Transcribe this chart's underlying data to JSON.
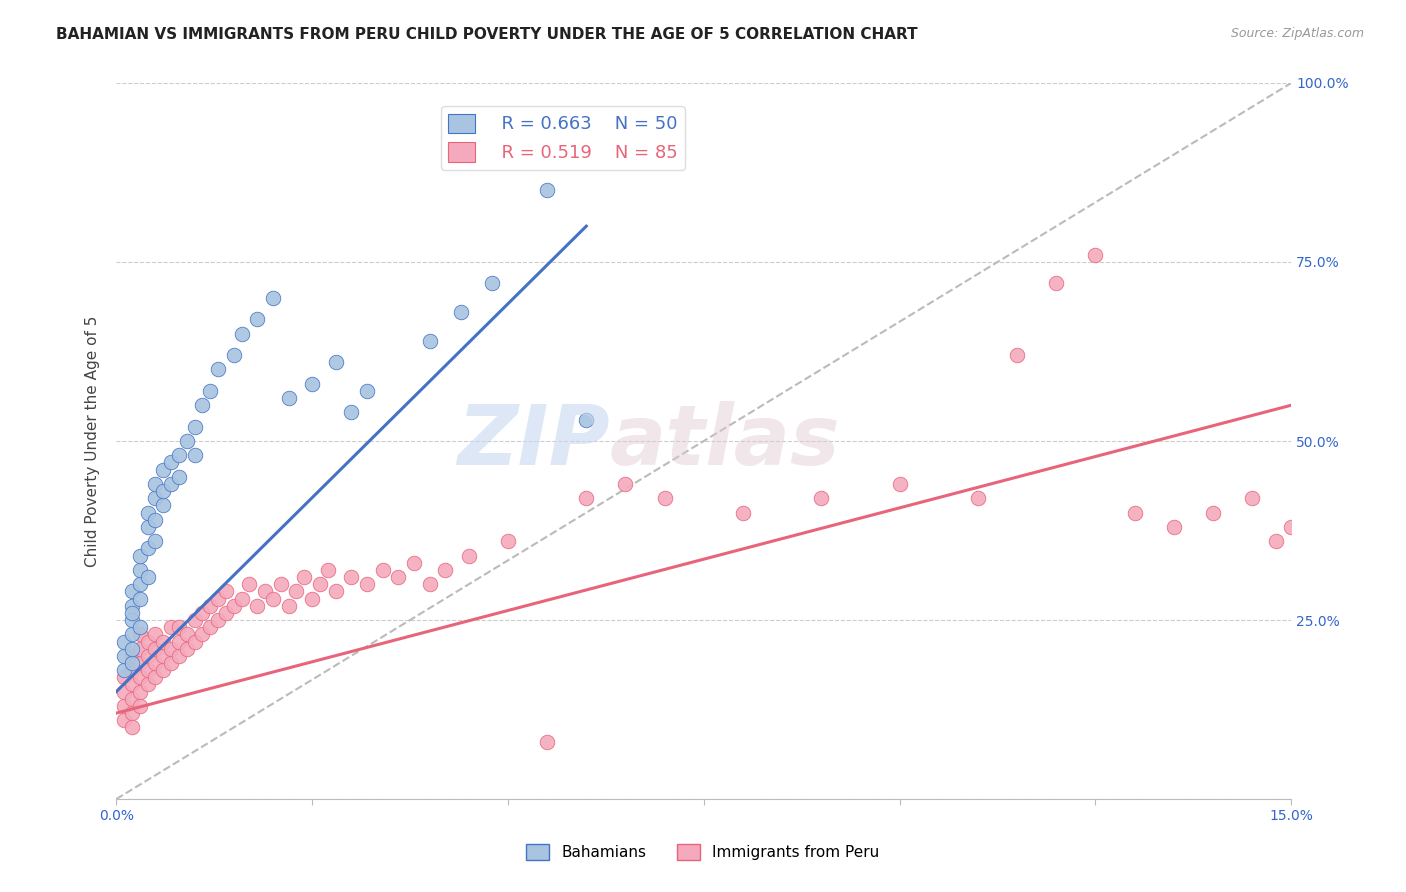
{
  "title": "BAHAMIAN VS IMMIGRANTS FROM PERU CHILD POVERTY UNDER THE AGE OF 5 CORRELATION CHART",
  "source": "Source: ZipAtlas.com",
  "ylabel": "Child Poverty Under the Age of 5",
  "xlim": [
    0.0,
    0.15
  ],
  "ylim": [
    0.0,
    1.0
  ],
  "xticks": [
    0.0,
    0.025,
    0.05,
    0.075,
    0.1,
    0.125,
    0.15
  ],
  "xticklabels": [
    "0.0%",
    "",
    "",
    "",
    "",
    "",
    "15.0%"
  ],
  "ytick_positions": [
    0.0,
    0.25,
    0.5,
    0.75,
    1.0
  ],
  "yticklabels": [
    "",
    "25.0%",
    "50.0%",
    "75.0%",
    "100.0%"
  ],
  "blue_color": "#A8C4E0",
  "pink_color": "#F4AABC",
  "blue_line_color": "#4472C4",
  "pink_line_color": "#E8647A",
  "dashed_line_color": "#BBBBBB",
  "legend_R_blue": "R = 0.663",
  "legend_N_blue": "N = 50",
  "legend_R_pink": "R = 0.519",
  "legend_N_pink": "N = 85",
  "legend_label_blue": "Bahamians",
  "legend_label_pink": "Immigrants from Peru",
  "watermark_zip": "ZIP",
  "watermark_atlas": "atlas",
  "blue_scatter_x": [
    0.001,
    0.001,
    0.001,
    0.002,
    0.002,
    0.002,
    0.002,
    0.002,
    0.002,
    0.002,
    0.003,
    0.003,
    0.003,
    0.003,
    0.003,
    0.004,
    0.004,
    0.004,
    0.004,
    0.005,
    0.005,
    0.005,
    0.005,
    0.006,
    0.006,
    0.006,
    0.007,
    0.007,
    0.008,
    0.008,
    0.009,
    0.01,
    0.01,
    0.011,
    0.012,
    0.013,
    0.015,
    0.016,
    0.018,
    0.02,
    0.022,
    0.025,
    0.028,
    0.03,
    0.032,
    0.04,
    0.044,
    0.048,
    0.055,
    0.06
  ],
  "blue_scatter_y": [
    0.18,
    0.2,
    0.22,
    0.19,
    0.21,
    0.23,
    0.25,
    0.27,
    0.29,
    0.26,
    0.24,
    0.28,
    0.3,
    0.32,
    0.34,
    0.31,
    0.35,
    0.38,
    0.4,
    0.36,
    0.39,
    0.42,
    0.44,
    0.41,
    0.43,
    0.46,
    0.44,
    0.47,
    0.45,
    0.48,
    0.5,
    0.48,
    0.52,
    0.55,
    0.57,
    0.6,
    0.62,
    0.65,
    0.67,
    0.7,
    0.56,
    0.58,
    0.61,
    0.54,
    0.57,
    0.64,
    0.68,
    0.72,
    0.85,
    0.53
  ],
  "pink_scatter_x": [
    0.001,
    0.001,
    0.001,
    0.001,
    0.002,
    0.002,
    0.002,
    0.002,
    0.002,
    0.002,
    0.003,
    0.003,
    0.003,
    0.003,
    0.003,
    0.003,
    0.004,
    0.004,
    0.004,
    0.004,
    0.005,
    0.005,
    0.005,
    0.005,
    0.006,
    0.006,
    0.006,
    0.007,
    0.007,
    0.007,
    0.008,
    0.008,
    0.008,
    0.009,
    0.009,
    0.01,
    0.01,
    0.011,
    0.011,
    0.012,
    0.012,
    0.013,
    0.013,
    0.014,
    0.014,
    0.015,
    0.016,
    0.017,
    0.018,
    0.019,
    0.02,
    0.021,
    0.022,
    0.023,
    0.024,
    0.025,
    0.026,
    0.027,
    0.028,
    0.03,
    0.032,
    0.034,
    0.036,
    0.038,
    0.04,
    0.042,
    0.045,
    0.05,
    0.055,
    0.06,
    0.065,
    0.07,
    0.08,
    0.09,
    0.1,
    0.11,
    0.115,
    0.12,
    0.125,
    0.13,
    0.135,
    0.14,
    0.145,
    0.148,
    0.15
  ],
  "pink_scatter_y": [
    0.13,
    0.15,
    0.11,
    0.17,
    0.14,
    0.16,
    0.12,
    0.18,
    0.1,
    0.2,
    0.15,
    0.17,
    0.13,
    0.19,
    0.21,
    0.23,
    0.16,
    0.18,
    0.2,
    0.22,
    0.17,
    0.19,
    0.21,
    0.23,
    0.18,
    0.2,
    0.22,
    0.19,
    0.21,
    0.24,
    0.2,
    0.22,
    0.24,
    0.21,
    0.23,
    0.22,
    0.25,
    0.23,
    0.26,
    0.24,
    0.27,
    0.25,
    0.28,
    0.26,
    0.29,
    0.27,
    0.28,
    0.3,
    0.27,
    0.29,
    0.28,
    0.3,
    0.27,
    0.29,
    0.31,
    0.28,
    0.3,
    0.32,
    0.29,
    0.31,
    0.3,
    0.32,
    0.31,
    0.33,
    0.3,
    0.32,
    0.34,
    0.36,
    0.08,
    0.42,
    0.44,
    0.42,
    0.4,
    0.42,
    0.44,
    0.42,
    0.62,
    0.72,
    0.76,
    0.4,
    0.38,
    0.4,
    0.42,
    0.36,
    0.38
  ],
  "blue_line_x0": 0.0,
  "blue_line_y0": 0.15,
  "blue_line_x1": 0.06,
  "blue_line_y1": 0.8,
  "pink_line_x0": 0.0,
  "pink_line_y0": 0.12,
  "pink_line_x1": 0.15,
  "pink_line_y1": 0.55
}
